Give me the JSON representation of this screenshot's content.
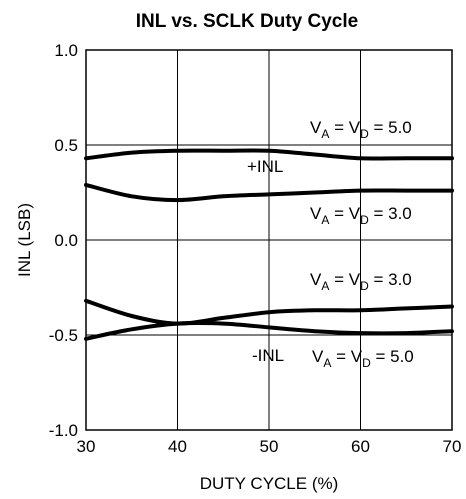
{
  "chart_data": {
    "type": "line",
    "title": "INL vs. SCLK Duty Cycle",
    "xlabel": "DUTY CYCLE (%)",
    "ylabel": "INL (LSB)",
    "xlim": [
      30,
      70
    ],
    "ylim": [
      -1.0,
      1.0
    ],
    "x_ticks": [
      30,
      40,
      50,
      60,
      70
    ],
    "y_ticks": [
      1.0,
      0.5,
      0.0,
      -0.5,
      -1.0
    ],
    "x_tick_labels": [
      "30",
      "40",
      "50",
      "60",
      "70"
    ],
    "y_tick_labels": [
      "1.0",
      "0.5",
      "0.0",
      "-0.5",
      "-1.0"
    ],
    "grid": true,
    "series": [
      {
        "x": [
          30,
          35,
          40,
          45,
          50,
          55,
          60,
          65,
          70
        ],
        "values": [
          0.43,
          0.46,
          0.47,
          0.47,
          0.47,
          0.45,
          0.43,
          0.43,
          0.43
        ]
      },
      {
        "x": [
          30,
          35,
          40,
          45,
          50,
          55,
          60,
          65,
          70
        ],
        "values": [
          0.29,
          0.23,
          0.21,
          0.23,
          0.24,
          0.25,
          0.26,
          0.26,
          0.26
        ]
      },
      {
        "x": [
          30,
          35,
          40,
          45,
          50,
          55,
          60,
          65,
          70
        ],
        "values": [
          -0.32,
          -0.4,
          -0.44,
          -0.41,
          -0.38,
          -0.37,
          -0.37,
          -0.36,
          -0.35
        ]
      },
      {
        "x": [
          30,
          35,
          40,
          45,
          50,
          55,
          60,
          65,
          70
        ],
        "values": [
          -0.52,
          -0.47,
          -0.44,
          -0.44,
          -0.46,
          -0.48,
          -0.49,
          -0.49,
          -0.48
        ]
      }
    ],
    "annotations": {
      "a1": {
        "pre": "V",
        "s1": "A",
        "mid": " = V",
        "s2": "D",
        "post": " = 5.0"
      },
      "a2": {
        "text": "+INL"
      },
      "a3": {
        "pre": "V",
        "s1": "A",
        "mid": " = V",
        "s2": "D",
        "post": " = 3.0"
      },
      "a4": {
        "pre": "V",
        "s1": "A",
        "mid": " = V",
        "s2": "D",
        "post": " = 3.0"
      },
      "a5": {
        "text": "-INL"
      },
      "a6": {
        "pre": "V",
        "s1": "A",
        "mid": " = V",
        "s2": "D",
        "post": " = 5.0"
      }
    }
  }
}
